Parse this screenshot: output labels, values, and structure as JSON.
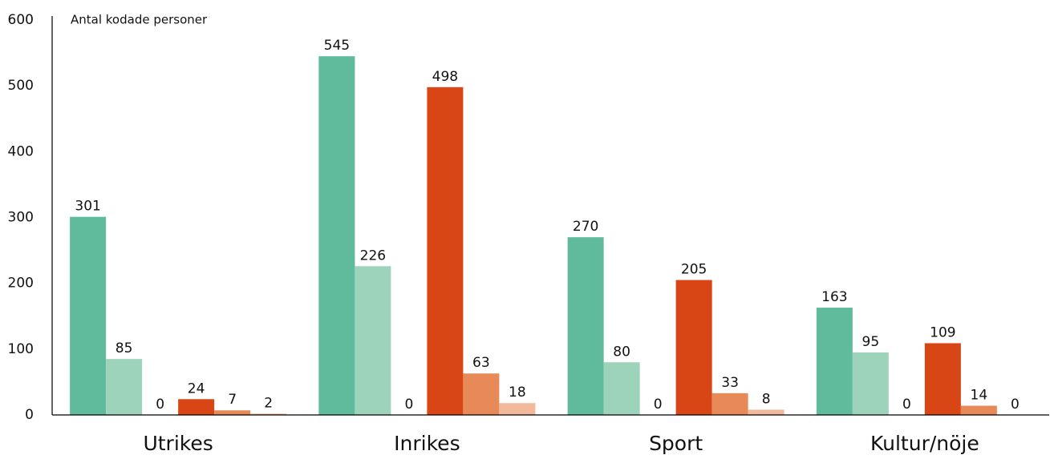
{
  "chart_data": {
    "type": "bar",
    "title": "Antal kodade personer",
    "categories": [
      "Utrikes",
      "Inrikes",
      "Sport",
      "Kultur/nöje"
    ],
    "series": [
      {
        "color": "#5fbb9c",
        "values": [
          301,
          545,
          270,
          163
        ]
      },
      {
        "color": "#9dd3bb",
        "values": [
          85,
          226,
          80,
          95
        ]
      },
      {
        "color": "#c9e6d8",
        "values": [
          0,
          0,
          0,
          0
        ]
      },
      {
        "color": "#d94616",
        "values": [
          24,
          498,
          205,
          109
        ]
      },
      {
        "color": "#e78a58",
        "values": [
          7,
          63,
          33,
          14
        ]
      },
      {
        "color": "#f3b99b",
        "values": [
          2,
          18,
          8,
          0
        ]
      }
    ],
    "ylim": [
      0,
      600
    ],
    "yticks": [
      0,
      100,
      200,
      300,
      400,
      500,
      600
    ],
    "grid": false
  }
}
